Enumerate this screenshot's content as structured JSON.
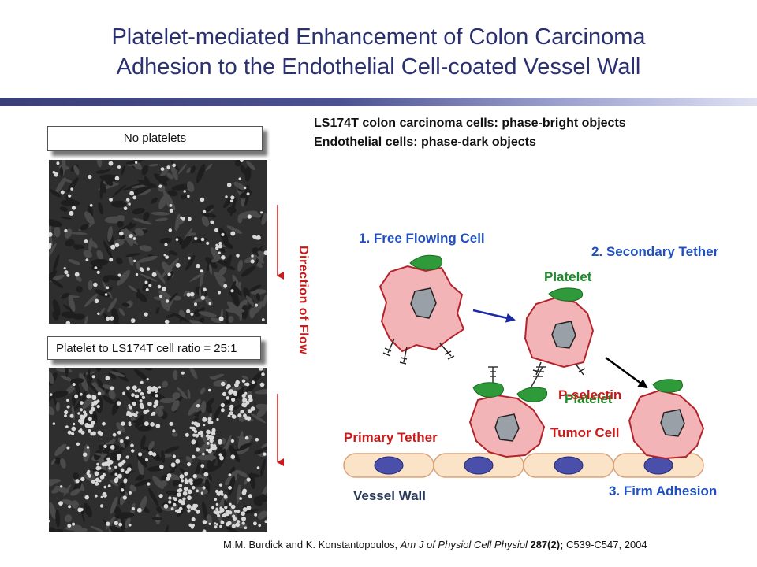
{
  "slide": {
    "title_line1": "Platelet-mediated Enhancement of Colon Carcinoma",
    "title_line2": "Adhesion to the Endothelial Cell-coated Vessel Wall"
  },
  "panels": {
    "top_label": "No platelets",
    "bottom_label": "Platelet to LS174T cell ratio = 25:1"
  },
  "legend": {
    "line1": "LS174T colon carcinoma cells: phase-bright objects",
    "line2": "Endothelial cells: phase-dark objects"
  },
  "flow": {
    "label": "Direction of Flow"
  },
  "diagram": {
    "step1": "1. Free Flowing Cell",
    "step2": "2. Secondary Tether",
    "step3": "3. Firm Adhesion",
    "platelet_top": "Platelet",
    "p_selectin": "P-selectin",
    "platelet_mid": "Platelet",
    "primary_tether": "Primary Tether",
    "tumor_cell": "Tumor Cell",
    "vessel_wall": "Vessel Wall"
  },
  "citation": {
    "authors": "M.M. Burdick and K. Konstantopoulos, ",
    "journal": "Am J of Physiol Cell Physiol",
    "volume": " 287(2);",
    "pages": " C539-C547, 2004"
  },
  "colors": {
    "title": "#2a3070",
    "blue_label": "#1f4fc0",
    "green_label": "#1f8a2a",
    "red_label": "#cc1a1a",
    "tumor_fill": "#f3b4b8",
    "platelet_fill": "#2e9a3a",
    "nucleus_fill": "#4a4faa"
  }
}
